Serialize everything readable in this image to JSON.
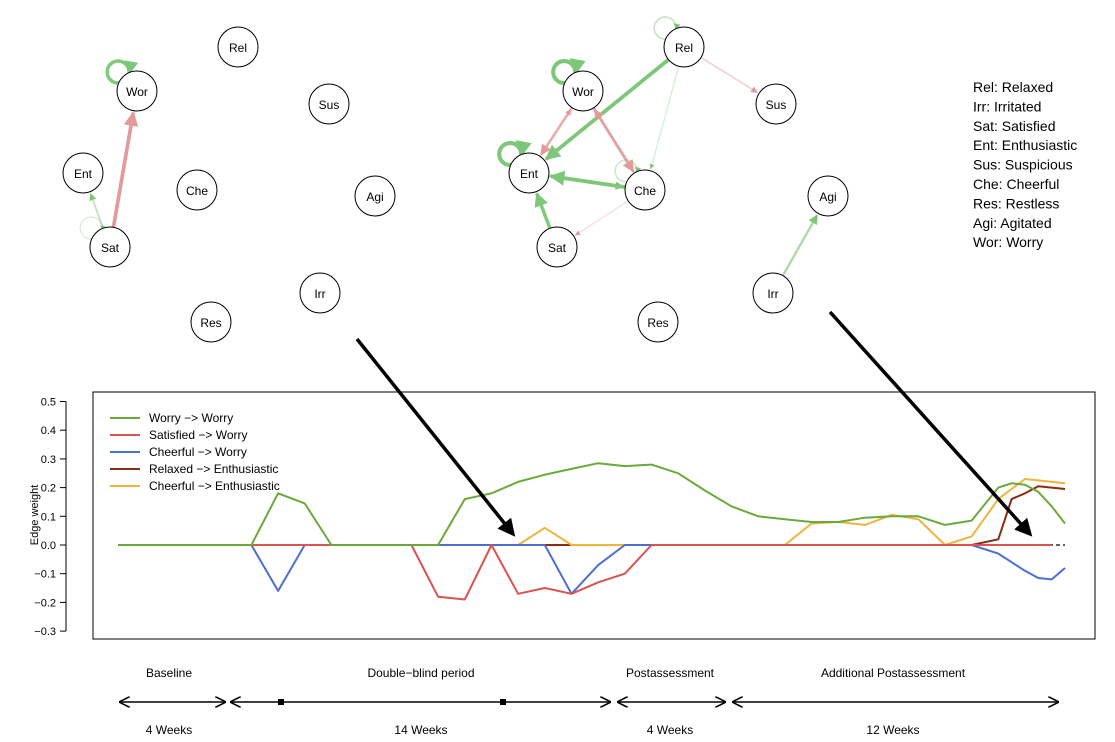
{
  "networks": [
    {
      "nodes": [
        {
          "id": "Rel",
          "label": "Rel"
        },
        {
          "id": "Wor",
          "label": "Wor"
        },
        {
          "id": "Sus",
          "label": "Sus"
        },
        {
          "id": "Ent",
          "label": "Ent"
        },
        {
          "id": "Che",
          "label": "Che"
        },
        {
          "id": "Agi",
          "label": "Agi"
        },
        {
          "id": "Sat",
          "label": "Sat"
        },
        {
          "id": "Irr",
          "label": "Irr"
        },
        {
          "id": "Res",
          "label": "Res"
        }
      ],
      "edges": [
        {
          "from": "Wor",
          "to": "Wor",
          "sign": "positive",
          "weight": 0.18
        },
        {
          "from": "Sat",
          "to": "Wor",
          "sign": "negative",
          "weight": 0.19
        },
        {
          "from": "Sat",
          "to": "Ent",
          "sign": "positive",
          "weight": 0.06
        },
        {
          "from": "Sat",
          "to": "Sat",
          "sign": "positive",
          "weight": 0.02
        }
      ]
    },
    {
      "nodes": [
        {
          "id": "Rel",
          "label": "Rel"
        },
        {
          "id": "Wor",
          "label": "Wor"
        },
        {
          "id": "Sus",
          "label": "Sus"
        },
        {
          "id": "Ent",
          "label": "Ent"
        },
        {
          "id": "Che",
          "label": "Che"
        },
        {
          "id": "Sat",
          "label": "Sat"
        },
        {
          "id": "Res",
          "label": "Res"
        }
      ],
      "edges": [
        {
          "from": "Rel",
          "to": "Rel",
          "sign": "positive",
          "weight": 0.05
        },
        {
          "from": "Wor",
          "to": "Wor",
          "sign": "positive",
          "weight": 0.22
        },
        {
          "from": "Ent",
          "to": "Ent",
          "sign": "positive",
          "weight": 0.22
        },
        {
          "from": "Rel",
          "to": "Ent",
          "sign": "positive",
          "weight": 0.2
        },
        {
          "from": "Rel",
          "to": "Sus",
          "sign": "negative",
          "weight": 0.05
        },
        {
          "from": "Che",
          "to": "Ent",
          "sign": "positive",
          "weight": 0.2
        },
        {
          "from": "Ent",
          "to": "Che",
          "sign": "positive",
          "weight": 0.08
        },
        {
          "from": "Sat",
          "to": "Ent",
          "sign": "positive",
          "weight": 0.18
        },
        {
          "from": "Wor",
          "to": "Ent",
          "sign": "negative",
          "weight": 0.12
        },
        {
          "from": "Wor",
          "to": "Che",
          "sign": "negative",
          "weight": 0.14
        },
        {
          "from": "Che",
          "to": "Wor",
          "sign": "negative",
          "weight": 0.1
        },
        {
          "from": "Ent",
          "to": "Wor",
          "sign": "negative",
          "weight": 0.04
        },
        {
          "from": "Rel",
          "to": "Che",
          "sign": "positive",
          "weight": 0.02
        },
        {
          "from": "Che",
          "to": "Che",
          "sign": "positive",
          "weight": 0.04
        },
        {
          "from": "Che",
          "to": "Sat",
          "sign": "negative",
          "weight": 0.02
        }
      ]
    },
    {
      "nodes": [
        {
          "id": "Agi",
          "label": "Agi"
        },
        {
          "id": "Irr",
          "label": "Irr"
        }
      ],
      "edges": [
        {
          "from": "Irr",
          "to": "Agi",
          "sign": "positive",
          "weight": 0.1
        }
      ]
    }
  ],
  "node_legend": [
    "Rel: Relaxed",
    "Irr: Irritated",
    "Sat: Satisfied",
    "Ent: Enthusiastic",
    "Sus: Suspicious",
    "Che: Cheerful",
    "Res: Restless",
    "Agi: Agitated",
    "Wor: Worry"
  ],
  "chart_data": {
    "type": "line",
    "xlabel": "",
    "ylabel": "Edge weight",
    "ylim": [
      -0.35,
      0.52
    ],
    "yticks": [
      -0.3,
      -0.2,
      -0.1,
      0.0,
      0.1,
      0.2,
      0.3,
      0.4,
      0.5
    ],
    "ytick_labels": [
      "−0.3",
      "−0.2",
      "−0.1",
      "0.0",
      "0.1",
      "0.2",
      "0.3",
      "0.4",
      "0.5"
    ],
    "xlim": [
      0,
      35.5
    ],
    "x": [
      0,
      1,
      2,
      3,
      4,
      5,
      6,
      7,
      8,
      9,
      10,
      11,
      12,
      13,
      14,
      15,
      16,
      17,
      18,
      19,
      20,
      21,
      22,
      23,
      24,
      25,
      26,
      27,
      28,
      29,
      30,
      31,
      32,
      33,
      34,
      35
    ],
    "reference_line": 0.0,
    "legend_position": "top-left",
    "series": [
      {
        "name": "Worry −> Worry",
        "color": "#6aaa3a",
        "values": [
          0,
          0,
          0,
          0,
          0,
          0,
          0.18,
          0.145,
          0,
          0,
          0,
          0,
          0,
          0.16,
          0.18,
          0.22,
          0.245,
          0.265,
          0.285,
          0.275,
          0.28,
          0.25,
          0.19,
          0.135,
          0.1,
          0.09,
          0.08,
          0.08,
          0.095,
          0.1,
          0.1,
          0.07,
          0.085,
          0.08,
          0.12,
          0.135
        ]
      },
      {
        "name": "Satisfied −> Worry",
        "color": "#d9534f",
        "values": [
          0,
          0,
          0,
          0,
          0,
          0,
          0,
          0,
          0,
          0,
          0,
          0,
          -0.18,
          -0.19,
          0,
          -0.17,
          -0.15,
          -0.17,
          -0.13,
          -0.1,
          0,
          0,
          0,
          0,
          0,
          0,
          0,
          0,
          0,
          0,
          0,
          0,
          0,
          0,
          0,
          0
        ]
      },
      {
        "name": "Cheerful −> Worry",
        "color": "#4a6fd0",
        "values": [
          0,
          0,
          0,
          0,
          0,
          0,
          -0.16,
          0,
          0,
          0,
          0,
          0,
          0,
          0,
          0,
          0,
          0,
          -0.17,
          -0.07,
          0,
          0,
          0,
          0,
          0,
          0,
          0,
          0,
          0,
          0,
          0,
          0,
          0,
          0,
          0,
          0,
          0
        ]
      },
      {
        "name": "Relaxed −> Enthusiastic",
        "color": "#8b2b0f",
        "values": [
          0,
          0,
          0,
          0,
          0,
          0,
          0,
          0,
          0,
          0,
          0,
          0,
          0,
          0,
          0,
          0,
          0,
          0,
          0,
          0,
          0,
          0,
          0,
          0,
          0,
          0,
          0,
          0,
          0,
          0,
          0,
          0,
          0,
          0,
          0,
          0
        ]
      },
      {
        "name": "Cheerful −> Enthusiastic",
        "color": "#f2b33d",
        "values": [
          0,
          0,
          0,
          0,
          0,
          0,
          0,
          0,
          0,
          0,
          0,
          0,
          0,
          0,
          0,
          0,
          0.06,
          0,
          0,
          0,
          0,
          0,
          0,
          0,
          0,
          0,
          0.075,
          0.08,
          0.07,
          0.105,
          0.09,
          0,
          0.03,
          0.08,
          0.105,
          0.16
        ]
      }
    ],
    "tail": {
      "x": [
        33,
        33.5,
        34,
        34.5,
        35,
        35.5
      ],
      "series": [
        {
          "name": "Worry −> Worry",
          "values": [
            0.2,
            0.215,
            0.21,
            0.185,
            0.135,
            0.075
          ]
        },
        {
          "name": "Cheerful −> Worry",
          "values": [
            -0.03,
            -0.06,
            -0.09,
            -0.115,
            -0.12,
            -0.08
          ]
        },
        {
          "name": "Relaxed −> Enthusiastic",
          "values": [
            0.02,
            0.16,
            0.18,
            0.205,
            0.2,
            0.195
          ]
        },
        {
          "name": "Cheerful −> Enthusiastic",
          "values": [
            0.16,
            0.195,
            0.23,
            0.225,
            0.22,
            0.215
          ]
        }
      ]
    }
  },
  "timeline": {
    "phases": [
      {
        "title": "Baseline",
        "duration": "4 Weeks"
      },
      {
        "title": "Double−blind period",
        "duration": "14 Weeks"
      },
      {
        "title": "Postassessment",
        "duration": "4 Weeks"
      },
      {
        "title": "Additional Postassessment",
        "duration": "12 Weeks"
      }
    ]
  },
  "colors": {
    "positive_edge": "#7ec77a",
    "negative_edge": "#e39a9a",
    "arrow": "#000000"
  }
}
